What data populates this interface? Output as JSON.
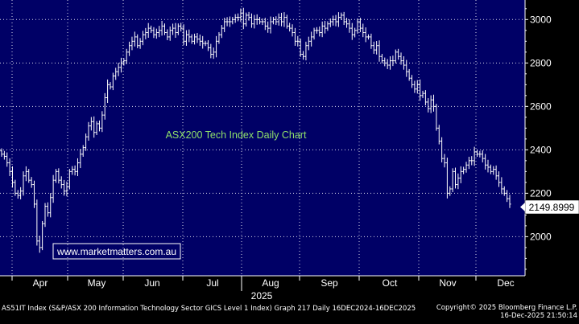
{
  "chart_data": {
    "type": "bar",
    "subtype": "ohlc",
    "title": "ASX200 Tech Index Daily Chart",
    "watermark": "www.marketmatters.com.au",
    "months": [
      "Apr",
      "May",
      "Jun",
      "Jul",
      "Aug",
      "Sep",
      "Oct",
      "Nov",
      "Dec"
    ],
    "year_label": "2025",
    "y_ticks": [
      2000,
      2200,
      2400,
      2600,
      2800,
      3000
    ],
    "ylim": [
      1820,
      3090
    ],
    "last_value_label": "2149.8999",
    "last_value": 2149.9,
    "grid": true,
    "series": [
      {
        "x_start": "2025-03-17",
        "x_end": "2025-12-16",
        "closes": [
          2380,
          2370,
          2340,
          2300,
          2250,
          2200,
          2190,
          2210,
          2280,
          2300,
          2260,
          2240,
          2150,
          1980,
          1950,
          2060,
          2140,
          2110,
          2180,
          2260,
          2300,
          2260,
          2240,
          2210,
          2230,
          2300,
          2310,
          2300,
          2340,
          2380,
          2410,
          2460,
          2510,
          2530,
          2480,
          2520,
          2500,
          2560,
          2640,
          2700,
          2690,
          2740,
          2760,
          2780,
          2800,
          2810,
          2850,
          2880,
          2900,
          2920,
          2880,
          2900,
          2930,
          2940,
          2960,
          2950,
          2930,
          2940,
          2950,
          2970,
          2940,
          2920,
          2950,
          2960,
          2940,
          2970,
          2960,
          2900,
          2930,
          2920,
          2900,
          2920,
          2910,
          2900,
          2890,
          2890,
          2870,
          2840,
          2850,
          2900,
          2930,
          2960,
          2990,
          2990,
          2990,
          3000,
          3010,
          3010,
          3030,
          2980,
          3020,
          3010,
          2980,
          3000,
          3000,
          2990,
          2990,
          2970,
          2960,
          2990,
          3000,
          2990,
          3010,
          2990,
          3010,
          2970,
          2960,
          2940,
          2900,
          2900,
          2840,
          2830,
          2880,
          2900,
          2920,
          2950,
          2950,
          2940,
          2970,
          2960,
          2980,
          2990,
          3000,
          2990,
          3010,
          3020,
          2990,
          2980,
          2960,
          2930,
          2950,
          2990,
          2960,
          2940,
          2920,
          2920,
          2880,
          2860,
          2880,
          2830,
          2810,
          2800,
          2790,
          2810,
          2810,
          2850,
          2830,
          2810,
          2790,
          2760,
          2730,
          2700,
          2680,
          2700,
          2650,
          2660,
          2620,
          2590,
          2630,
          2600,
          2500,
          2440,
          2360,
          2340,
          2200,
          2220,
          2300,
          2240,
          2270,
          2300,
          2310,
          2330,
          2350,
          2350,
          2390,
          2380,
          2380,
          2360,
          2330,
          2320,
          2300,
          2310,
          2280,
          2250,
          2220,
          2200,
          2175,
          2150
        ]
      }
    ]
  },
  "footer": {
    "left": "AS51IT Index (S&P/ASX 200 Information Technology Sector GICS Level 1 Index) Graph 217 Daily 16DEC2024-16DEC2025",
    "right_line1": "Copyright© 2025 Bloomberg Finance L.P.",
    "right_line2": "16-Dec-2025 21:50:14"
  },
  "colors": {
    "background": "#000066",
    "axis_bg": "#000000",
    "grid": "#ffffff",
    "bars": "#ffffff",
    "title_text": "#8fe06a",
    "watermark_text": "#ffffff",
    "label_box": "#ffffff"
  }
}
